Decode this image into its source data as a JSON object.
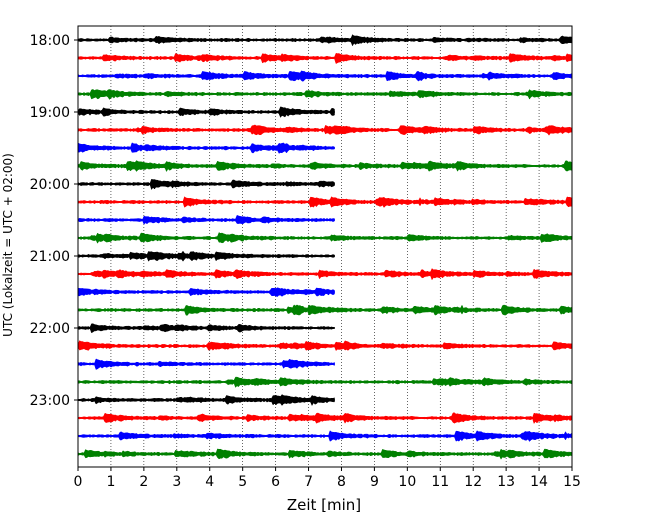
{
  "chart_data": {
    "type": "line",
    "plot_kind": "helicorder",
    "xlabel": "Zeit  [min]",
    "ylabel": "UTC (Lokalzeit = UTC + 02:00)",
    "xlim": [
      0,
      15
    ],
    "x_ticks": [
      "0",
      "1",
      "2",
      "3",
      "4",
      "5",
      "6",
      "7",
      "8",
      "9",
      "10",
      "11",
      "12",
      "13",
      "14",
      "15"
    ],
    "y_tick_labels": [
      "18:00",
      "19:00",
      "20:00",
      "21:00",
      "22:00",
      "23:00"
    ],
    "row_interval_minutes": 15,
    "colors_cycle": [
      "#000000",
      "#ff0000",
      "#0000ff",
      "#008000"
    ],
    "grid": "vertical dotted lines at each minute",
    "rows": [
      {
        "start": "18:00",
        "color": "#000000",
        "end_minute": 15
      },
      {
        "start": "18:15",
        "color": "#ff0000",
        "end_minute": 15
      },
      {
        "start": "18:30",
        "color": "#0000ff",
        "end_minute": 15
      },
      {
        "start": "18:45",
        "color": "#008000",
        "end_minute": 15
      },
      {
        "start": "19:00",
        "color": "#000000",
        "end_minute": 7.8
      },
      {
        "start": "19:15",
        "color": "#ff0000",
        "end_minute": 15
      },
      {
        "start": "19:30",
        "color": "#0000ff",
        "end_minute": 7.8
      },
      {
        "start": "19:45",
        "color": "#008000",
        "end_minute": 15
      },
      {
        "start": "20:00",
        "color": "#000000",
        "end_minute": 7.8
      },
      {
        "start": "20:15",
        "color": "#ff0000",
        "end_minute": 15
      },
      {
        "start": "20:30",
        "color": "#0000ff",
        "end_minute": 7.8
      },
      {
        "start": "20:45",
        "color": "#008000",
        "end_minute": 15
      },
      {
        "start": "21:00",
        "color": "#000000",
        "end_minute": 7.8
      },
      {
        "start": "21:15",
        "color": "#ff0000",
        "end_minute": 15
      },
      {
        "start": "21:30",
        "color": "#0000ff",
        "end_minute": 7.8
      },
      {
        "start": "21:45",
        "color": "#008000",
        "end_minute": 15
      },
      {
        "start": "22:00",
        "color": "#000000",
        "end_minute": 7.8
      },
      {
        "start": "22:15",
        "color": "#ff0000",
        "end_minute": 15
      },
      {
        "start": "22:30",
        "color": "#0000ff",
        "end_minute": 7.8
      },
      {
        "start": "22:45",
        "color": "#008000",
        "end_minute": 15
      },
      {
        "start": "23:00",
        "color": "#000000",
        "end_minute": 7.8
      },
      {
        "start": "23:15",
        "color": "#ff0000",
        "end_minute": 15
      },
      {
        "start": "23:30",
        "color": "#0000ff",
        "end_minute": 15
      },
      {
        "start": "23:45",
        "color": "#008000",
        "end_minute": 15
      }
    ]
  }
}
